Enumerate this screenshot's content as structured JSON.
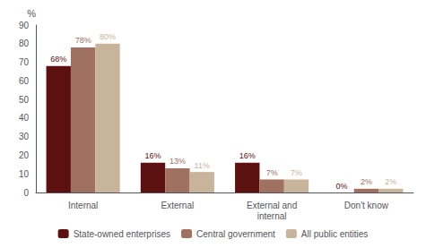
{
  "chart_data": {
    "type": "bar",
    "categories": [
      "Internal",
      "External",
      "External and\ninternal",
      "Don't know"
    ],
    "series": [
      {
        "name": "State-owned enterprises",
        "color": "#5c1010",
        "values": [
          68,
          16,
          16,
          0
        ],
        "value_labels": [
          "68%",
          "16%",
          "16%",
          "0%"
        ]
      },
      {
        "name": "Central government",
        "color": "#a07060",
        "values": [
          78,
          13,
          7,
          2
        ],
        "value_labels": [
          "78%",
          "13%",
          "7%",
          "2%"
        ]
      },
      {
        "name": "All public entities",
        "color": "#c8b49a",
        "values": [
          80,
          11,
          7,
          2
        ],
        "value_labels": [
          "80%",
          "11%",
          "7%",
          "2%"
        ]
      }
    ],
    "ylabel": "%",
    "ylim": [
      0,
      90
    ],
    "yticks": [
      0,
      10,
      20,
      30,
      40,
      50,
      60,
      70,
      80,
      90
    ],
    "grid": false,
    "legend": "bottom",
    "data_labels": true
  }
}
